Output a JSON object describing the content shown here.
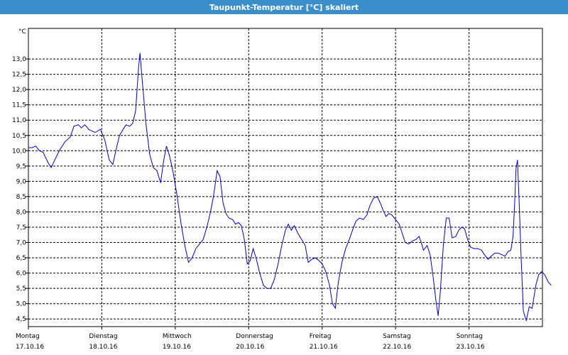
{
  "window": {
    "title": "Taupunkt-Temperatur [°C] skaliert"
  },
  "colors": {
    "title_bar": "#3a8fca",
    "title_text": "#ffffff",
    "line": "#0000c8",
    "grid": "#000000"
  },
  "chart_data": {
    "type": "line",
    "title": "Taupunkt-Temperatur [°C] skaliert",
    "y_unit": "°C",
    "ylim": [
      4.25,
      14.0
    ],
    "y_ticks": [
      4.5,
      5.0,
      5.5,
      6.0,
      6.5,
      7.0,
      7.5,
      8.0,
      8.5,
      9.0,
      9.5,
      10.0,
      10.5,
      11.0,
      11.5,
      12.0,
      12.5,
      13.0
    ],
    "y_tick_labels": [
      "4,5",
      "5,0",
      "5,5",
      "6,0",
      "6,5",
      "7,0",
      "7,5",
      "8,0",
      "8,5",
      "9,0",
      "9,5",
      "10,0",
      "10,5",
      "11,0",
      "11,5",
      "12,0",
      "12,5",
      "13,0"
    ],
    "xlim": [
      0,
      7
    ],
    "x_ticks": [
      {
        "x": 0,
        "day": "Montag",
        "date": "17.10.16"
      },
      {
        "x": 1,
        "day": "Dienstag",
        "date": "18.10.16"
      },
      {
        "x": 2,
        "day": "Mittwoch",
        "date": "19.10.16"
      },
      {
        "x": 3,
        "day": "Donnerstag",
        "date": "20.10.16"
      },
      {
        "x": 4,
        "day": "Freitag",
        "date": "21.10.16"
      },
      {
        "x": 5,
        "day": "Samstag",
        "date": "22.10.16"
      },
      {
        "x": 6,
        "day": "Sonntag",
        "date": "23.10.16"
      }
    ],
    "grid": true,
    "series": [
      {
        "points": [
          [
            0.0,
            10.1
          ],
          [
            0.05,
            10.1
          ],
          [
            0.1,
            10.15
          ],
          [
            0.15,
            10.0
          ],
          [
            0.2,
            9.95
          ],
          [
            0.27,
            9.6
          ],
          [
            0.31,
            9.45
          ],
          [
            0.36,
            9.7
          ],
          [
            0.42,
            10.0
          ],
          [
            0.5,
            10.3
          ],
          [
            0.57,
            10.45
          ],
          [
            0.62,
            10.8
          ],
          [
            0.68,
            10.85
          ],
          [
            0.72,
            10.75
          ],
          [
            0.77,
            10.85
          ],
          [
            0.82,
            10.7
          ],
          [
            0.86,
            10.65
          ],
          [
            0.91,
            10.6
          ],
          [
            0.98,
            10.7
          ],
          [
            1.04,
            10.35
          ],
          [
            1.1,
            9.7
          ],
          [
            1.15,
            9.55
          ],
          [
            1.2,
            10.1
          ],
          [
            1.24,
            10.5
          ],
          [
            1.29,
            10.7
          ],
          [
            1.33,
            10.85
          ],
          [
            1.38,
            10.8
          ],
          [
            1.42,
            10.9
          ],
          [
            1.46,
            11.3
          ],
          [
            1.5,
            12.7
          ],
          [
            1.52,
            13.2
          ],
          [
            1.55,
            12.3
          ],
          [
            1.6,
            10.9
          ],
          [
            1.65,
            9.9
          ],
          [
            1.7,
            9.45
          ],
          [
            1.75,
            9.35
          ],
          [
            1.8,
            8.95
          ],
          [
            1.84,
            9.65
          ],
          [
            1.88,
            10.15
          ],
          [
            1.92,
            9.85
          ],
          [
            1.97,
            9.3
          ],
          [
            2.02,
            8.6
          ],
          [
            2.08,
            7.6
          ],
          [
            2.13,
            6.9
          ],
          [
            2.18,
            6.35
          ],
          [
            2.23,
            6.5
          ],
          [
            2.28,
            6.8
          ],
          [
            2.33,
            6.95
          ],
          [
            2.38,
            7.1
          ],
          [
            2.43,
            7.5
          ],
          [
            2.48,
            8.0
          ],
          [
            2.52,
            8.5
          ],
          [
            2.55,
            9.0
          ],
          [
            2.57,
            9.35
          ],
          [
            2.61,
            9.15
          ],
          [
            2.65,
            8.3
          ],
          [
            2.69,
            7.95
          ],
          [
            2.73,
            7.8
          ],
          [
            2.78,
            7.75
          ],
          [
            2.82,
            7.6
          ],
          [
            2.86,
            7.65
          ],
          [
            2.9,
            7.55
          ],
          [
            2.94,
            7.1
          ],
          [
            2.98,
            6.3
          ],
          [
            3.02,
            6.4
          ],
          [
            3.06,
            6.8
          ],
          [
            3.1,
            6.5
          ],
          [
            3.15,
            6.0
          ],
          [
            3.2,
            5.6
          ],
          [
            3.25,
            5.5
          ],
          [
            3.3,
            5.5
          ],
          [
            3.35,
            5.8
          ],
          [
            3.4,
            6.3
          ],
          [
            3.45,
            6.9
          ],
          [
            3.5,
            7.4
          ],
          [
            3.54,
            7.6
          ],
          [
            3.58,
            7.4
          ],
          [
            3.62,
            7.55
          ],
          [
            3.67,
            7.3
          ],
          [
            3.72,
            7.1
          ],
          [
            3.77,
            6.9
          ],
          [
            3.81,
            6.35
          ],
          [
            3.86,
            6.45
          ],
          [
            3.91,
            6.5
          ],
          [
            3.96,
            6.4
          ],
          [
            4.0,
            6.3
          ],
          [
            4.05,
            6.05
          ],
          [
            4.1,
            5.6
          ],
          [
            4.14,
            5.0
          ],
          [
            4.18,
            4.85
          ],
          [
            4.22,
            5.7
          ],
          [
            4.27,
            6.35
          ],
          [
            4.32,
            6.8
          ],
          [
            4.37,
            7.1
          ],
          [
            4.42,
            7.45
          ],
          [
            4.46,
            7.7
          ],
          [
            4.51,
            7.8
          ],
          [
            4.56,
            7.75
          ],
          [
            4.61,
            7.9
          ],
          [
            4.65,
            8.2
          ],
          [
            4.7,
            8.45
          ],
          [
            4.75,
            8.5
          ],
          [
            4.79,
            8.3
          ],
          [
            4.83,
            8.05
          ],
          [
            4.87,
            7.85
          ],
          [
            4.91,
            7.95
          ],
          [
            4.95,
            7.9
          ],
          [
            5.0,
            7.75
          ],
          [
            5.05,
            7.6
          ],
          [
            5.09,
            7.3
          ],
          [
            5.13,
            7.0
          ],
          [
            5.18,
            6.95
          ],
          [
            5.23,
            7.05
          ],
          [
            5.28,
            7.1
          ],
          [
            5.32,
            7.2
          ],
          [
            5.35,
            7.0
          ],
          [
            5.38,
            6.75
          ],
          [
            5.43,
            6.9
          ],
          [
            5.47,
            6.6
          ],
          [
            5.51,
            5.9
          ],
          [
            5.55,
            5.1
          ],
          [
            5.58,
            4.6
          ],
          [
            5.61,
            5.4
          ],
          [
            5.65,
            6.9
          ],
          [
            5.69,
            7.8
          ],
          [
            5.73,
            7.8
          ],
          [
            5.77,
            7.15
          ],
          [
            5.82,
            7.2
          ],
          [
            5.86,
            7.4
          ],
          [
            5.9,
            7.5
          ],
          [
            5.94,
            7.45
          ],
          [
            5.98,
            7.1
          ],
          [
            6.02,
            6.85
          ],
          [
            6.07,
            6.8
          ],
          [
            6.12,
            6.8
          ],
          [
            6.17,
            6.75
          ],
          [
            6.21,
            6.6
          ],
          [
            6.26,
            6.45
          ],
          [
            6.3,
            6.55
          ],
          [
            6.35,
            6.65
          ],
          [
            6.4,
            6.65
          ],
          [
            6.45,
            6.6
          ],
          [
            6.49,
            6.55
          ],
          [
            6.53,
            6.7
          ],
          [
            6.57,
            6.75
          ],
          [
            6.6,
            7.2
          ],
          [
            6.62,
            8.2
          ],
          [
            6.64,
            9.4
          ],
          [
            6.66,
            9.7
          ],
          [
            6.68,
            8.5
          ],
          [
            6.71,
            6.5
          ],
          [
            6.74,
            4.75
          ],
          [
            6.78,
            4.45
          ],
          [
            6.82,
            4.9
          ],
          [
            6.86,
            4.85
          ],
          [
            6.91,
            5.6
          ],
          [
            6.95,
            5.95
          ],
          [
            6.99,
            6.05
          ],
          [
            7.03,
            5.95
          ],
          [
            7.08,
            5.7
          ],
          [
            7.12,
            5.6
          ]
        ]
      }
    ]
  }
}
